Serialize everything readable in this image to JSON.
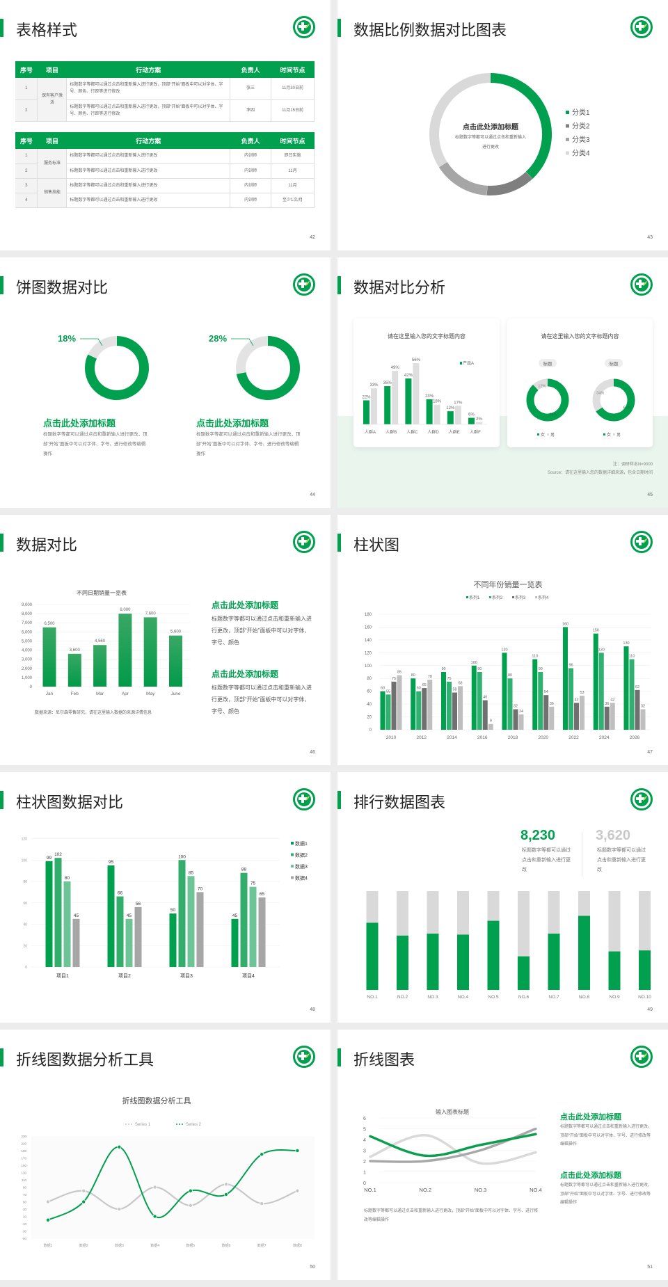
{
  "colors": {
    "accent": "#00a04f",
    "gray_dark": "#7f7f7f",
    "gray_mid": "#a6a6a6",
    "gray_light": "#d9d9d9"
  },
  "slides": [
    {
      "title": "表格样式",
      "page": "42",
      "table1": {
        "headers": [
          "序号",
          "项目",
          "行动方案",
          "负责人",
          "时间节点"
        ],
        "group": "保有客户激活",
        "rows": [
          {
            "no": "1",
            "plan": "标题数字等都可以通过点击和重新输入进行更改，顶部“开始”面板中可以对字体、字号、颜色、行距等进行修改",
            "owner": "张三",
            "time": "11月30日前"
          },
          {
            "no": "2",
            "plan": "标题数字等都可以通过点击和重新输入进行更改，顶部“开始”面板中可以对字体、字号、颜色、行距等进行修改",
            "owner": "李四",
            "time": "11月15日前"
          }
        ]
      },
      "table2": {
        "headers": [
          "序号",
          "项目",
          "行动方案",
          "负责人",
          "时间节点"
        ],
        "groups": [
          "服务标准",
          "销售技能"
        ],
        "rows": [
          {
            "no": "1",
            "plan": "标题数字等都可以通过点击和重新输入进行更改",
            "owner": "内训师",
            "time": "即日实施"
          },
          {
            "no": "2",
            "plan": "标题数字等都可以通过点击和重新输入进行更改",
            "owner": "内训师",
            "time": "11月"
          },
          {
            "no": "3",
            "plan": "标题数字等都可以通过点击和重新输入进行更改",
            "owner": "内训师",
            "time": "11月"
          },
          {
            "no": "4",
            "plan": "标题数字等都可以通过点击和重新输入进行更改",
            "owner": "内训师",
            "time": "至少1次/月"
          }
        ]
      }
    },
    {
      "title": "数据比例数据对比图表",
      "page": "43",
      "center_title": "点击此处添加标题",
      "center_body": "标题数字等都可以通过点击和重新输入进行更改"
    },
    {
      "title": "饼图数据对比",
      "page": "44",
      "blocks": [
        {
          "title": "点击此处添加标题",
          "body": "标题数字等都可以通过点击和重新输入进行更改，顶部“开始”面板中可以对字体、字号、进行修改等编辑操作"
        },
        {
          "title": "点击此处添加标题",
          "body": "标题数字等都可以通过点击和重新输入进行更改，顶部“开始”面板中可以对字体、字号、进行修改等编辑操作"
        }
      ]
    },
    {
      "title": "数据对比分析",
      "page": "45",
      "card_titles": [
        "请在这里输入您的文字标题内容",
        "请在这里输入您的文字标题内容"
      ],
      "note": "注：调研样本N=9000",
      "source": "Source：请在这里输入您的数据详细来源，包含日期时间"
    },
    {
      "title": "数据对比",
      "page": "46",
      "source": "数据来源：尼尔森零售研究，请在这里输入数据的来源详情信息",
      "blocks": [
        {
          "title": "点击此处添加标题",
          "body": "标题数字等都可以通过点击和重新输入进行更改，顶部“开始”面板中可以对字体、字号、颜色"
        },
        {
          "title": "点击此处添加标题",
          "body": "标题数字等都可以通过点击和重新输入进行更改，顶部“开始”面板中可以对字体、字号、颜色"
        }
      ]
    },
    {
      "title": "柱状图",
      "page": "47"
    },
    {
      "title": "柱状图数据对比",
      "page": "48"
    },
    {
      "title": "排行数据图表",
      "page": "49",
      "stats": [
        {
          "value": "8,230",
          "text": "标题数字等都可以通过点击和重新输入进行更改"
        },
        {
          "value": "3,620",
          "text": "标题数字等都可以通过点击和重新输入进行更改"
        }
      ]
    },
    {
      "title": "折线图数据分析工具",
      "page": "50"
    },
    {
      "title": "折线图表",
      "page": "51",
      "bottom_text": "标题数字等都可以通过点击和重新输入进行更改，顶部“开始”面板中可以对字体、字号、进行修改等编辑操作",
      "blocks": [
        {
          "title": "点击此处添加标题",
          "body": "标题数字等都可以通过点击和重新输入进行更改，顶部“开始”面板中可以对字体、字号、进行修改等编辑操作"
        },
        {
          "title": "点击此处添加标题",
          "body": "标题数字等都可以通过点击和重新输入进行更改，顶部“开始”面板中可以对字体、字号、进行修改等编辑操作"
        }
      ]
    }
  ],
  "chart_data": [
    {
      "type": "pie",
      "donut": true,
      "categories": [
        "分类1",
        "分类2",
        "分类3",
        "分类4"
      ],
      "values": [
        38,
        13,
        15,
        34
      ],
      "colors": [
        "#00a04f",
        "#7f7f7f",
        "#a6a6a6",
        "#d9d9d9"
      ],
      "legend": "right"
    },
    {
      "type": "pie",
      "donut": true,
      "series": [
        {
          "values": [
            82,
            18
          ],
          "label": "18%"
        },
        {
          "values": [
            72,
            28
          ],
          "label": "28%"
        }
      ],
      "colors": [
        "#00a04f",
        "#e3e3e3"
      ]
    },
    {
      "type": "bar",
      "categories": [
        "人群A",
        "人群B",
        "人群C",
        "人群D",
        "人群E",
        "人群F"
      ],
      "unit": "%",
      "series": [
        {
          "name": "产品A",
          "values": [
            22,
            35,
            42,
            23,
            12,
            6
          ]
        },
        {
          "values": [
            33,
            49,
            56,
            18,
            17,
            2
          ]
        }
      ],
      "colors": [
        "#00a04f",
        "#dedede"
      ]
    },
    {
      "type": "pie",
      "donut": true,
      "legend": [
        "女",
        "男"
      ],
      "unit": "%",
      "series": [
        {
          "name": "标题",
          "values": [
            88,
            12
          ]
        },
        {
          "name": "标题",
          "values": [
            66,
            34
          ]
        }
      ],
      "colors": [
        "#00a04f",
        "#dedede"
      ]
    },
    {
      "type": "bar",
      "title": "不同日期销量一览表",
      "categories": [
        "Jan",
        "Feb",
        "Mar",
        "Apr",
        "May",
        "June"
      ],
      "values": [
        6500,
        3600,
        4560,
        8000,
        7600,
        5600
      ],
      "data_labels": [
        "6,500",
        "3,600",
        "4,560",
        "8,000",
        "7,600",
        "5,600"
      ],
      "ylim": [
        0,
        9000
      ],
      "yticks": [
        "0",
        "1,000",
        "2,000",
        "3,000",
        "4,000",
        "5,000",
        "6,000",
        "7,000",
        "8,000",
        "9,000"
      ],
      "grid": true
    },
    {
      "type": "bar",
      "title": "不同年份销量一览表",
      "categories": [
        "2010",
        "2012",
        "2014",
        "2016",
        "2018",
        "2020",
        "2022",
        "2024",
        "2026"
      ],
      "series": [
        {
          "name": "系列1",
          "values": [
            60,
            80,
            90,
            100,
            120,
            110,
            160,
            150,
            130
          ]
        },
        {
          "name": "系列2",
          "values": [
            55,
            60,
            75,
            90,
            80,
            90,
            96,
            120,
            110
          ]
        },
        {
          "name": "系列3",
          "values": [
            75,
            65,
            58,
            46,
            32,
            54,
            42,
            36,
            62
          ]
        },
        {
          "name": "系列4",
          "values": [
            85,
            78,
            68,
            9,
            24,
            36,
            53,
            42,
            32
          ]
        }
      ],
      "colors": [
        "#00a04f",
        "#2fb171",
        "#707070",
        "#bfbfbf"
      ],
      "ylim": [
        0,
        180
      ],
      "yticks": [
        "0",
        "20",
        "40",
        "60",
        "80",
        "100",
        "120",
        "140",
        "160",
        "180"
      ],
      "legend": "top",
      "grid": true
    },
    {
      "type": "bar",
      "categories": [
        "项目1",
        "项目2",
        "项目3",
        "项目4"
      ],
      "series": [
        {
          "name": "数据1",
          "values": [
            99,
            95,
            50,
            45
          ]
        },
        {
          "name": "数据2",
          "values": [
            102,
            66,
            100,
            88
          ]
        },
        {
          "name": "数据3",
          "values": [
            80,
            45,
            85,
            75
          ]
        },
        {
          "name": "数据4",
          "values": [
            45,
            56,
            70,
            65
          ]
        }
      ],
      "colors": [
        "#00a04f",
        "#33ad6c",
        "#6cc497",
        "#a6a6a6"
      ],
      "ylim": [
        0,
        120
      ],
      "yticks": [
        "0",
        "20",
        "40",
        "60",
        "80",
        "100",
        "120"
      ],
      "legend": "right",
      "grid": true
    },
    {
      "type": "bar",
      "stacked": true,
      "categories": [
        "NO.1",
        "NO.2",
        "NO.3",
        "NO.4",
        "NO.5",
        "NO.6",
        "NO.7",
        "NO.8",
        "NO.9",
        "NO.10"
      ],
      "values": [
        0.68,
        0.55,
        0.57,
        0.56,
        0.7,
        0.34,
        0.57,
        0.75,
        0.39,
        0.4
      ],
      "colors": [
        "#00a04f",
        "#d9d9d9"
      ]
    },
    {
      "type": "line",
      "title": "折线图数据分析工具",
      "categories": [
        "数据1",
        "数据2",
        "数据3",
        "数据4",
        "数据5",
        "数据6",
        "数据7",
        "数据8"
      ],
      "series": [
        {
          "name": "Series 1",
          "values": [
            50,
            80,
            30,
            90,
            40,
            98,
            45,
            80
          ]
        },
        {
          "name": "Series 2",
          "values": [
            0,
            50,
            200,
            10,
            80,
            70,
            180,
            190
          ]
        }
      ],
      "colors": [
        "#c8c8c8",
        "#00a04f"
      ],
      "ylim": [
        -50,
        230
      ],
      "yticks": [
        "-50",
        "-30",
        "-10",
        "10",
        "30",
        "50",
        "70",
        "90",
        "110",
        "130",
        "150",
        "170",
        "190",
        "210",
        "230"
      ],
      "legend": "top"
    },
    {
      "type": "line",
      "title": "输入图表标题",
      "categories": [
        "NO.1",
        "NO.2",
        "NO.3",
        "NO.4"
      ],
      "series": [
        {
          "values": [
            4.3,
            2.5,
            3.5,
            4.5
          ]
        },
        {
          "values": [
            2.0,
            2.0,
            3.0,
            5.0
          ]
        },
        {
          "values": [
            2.4,
            4.4,
            1.8,
            2.8
          ]
        }
      ],
      "colors": [
        "#0a9e4e",
        "#a8a8a8",
        "#d9d9d9"
      ],
      "ylim": [
        0,
        6
      ],
      "yticks": [
        "0",
        "1",
        "2",
        "3",
        "4",
        "5",
        "6"
      ],
      "grid": true
    }
  ]
}
